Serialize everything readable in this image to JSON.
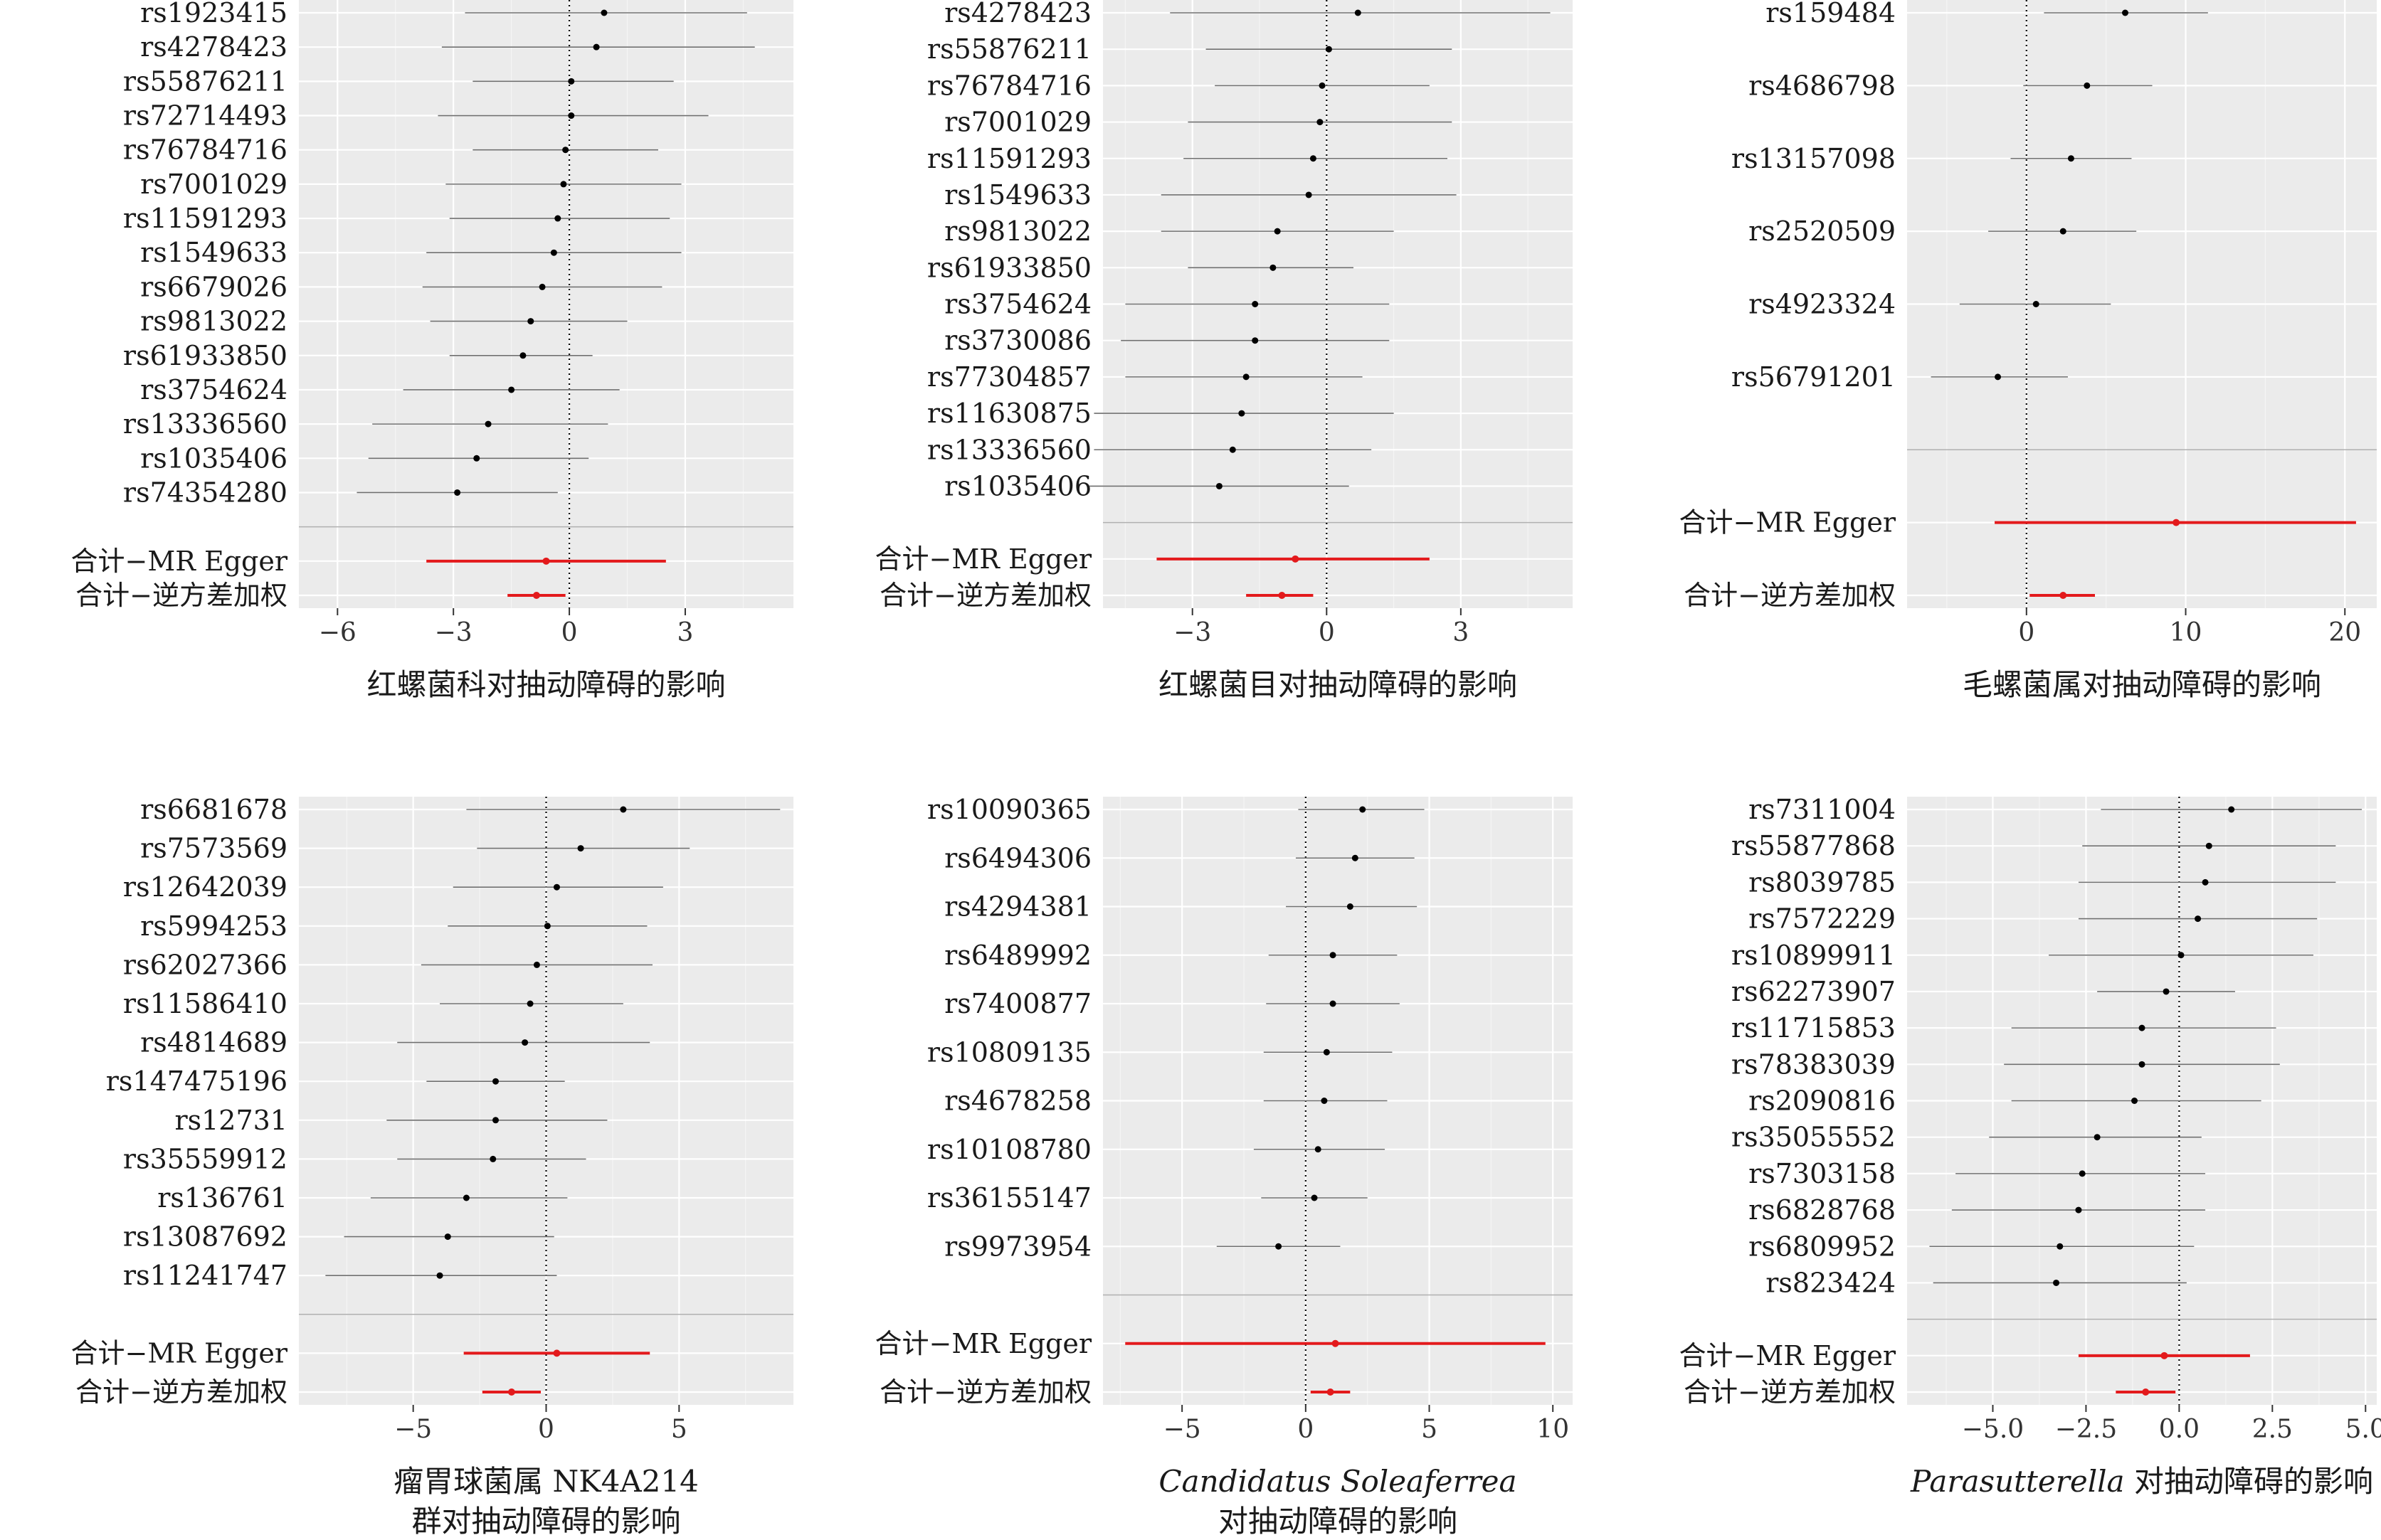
{
  "chart_data": [
    {
      "type": "forest",
      "xlabel_lines": [
        [
          {
            "text": "红螺菌科对抽动障碍的影响",
            "italic": false
          }
        ]
      ],
      "x_ticks": [
        -6,
        -3,
        0,
        3
      ],
      "xlim": [
        -7.0,
        5.8
      ],
      "zero_line": true,
      "snps": [
        {
          "name": "rs1923415",
          "estimate": 0.9,
          "lower": -2.7,
          "upper": 4.6
        },
        {
          "name": "rs4278423",
          "estimate": 0.7,
          "lower": -3.3,
          "upper": 4.8
        },
        {
          "name": "rs55876211",
          "estimate": 0.05,
          "lower": -2.5,
          "upper": 2.7
        },
        {
          "name": "rs72714493",
          "estimate": 0.05,
          "lower": -3.4,
          "upper": 3.6
        },
        {
          "name": "rs76784716",
          "estimate": -0.1,
          "lower": -2.5,
          "upper": 2.3
        },
        {
          "name": "rs7001029",
          "estimate": -0.15,
          "lower": -3.2,
          "upper": 2.9
        },
        {
          "name": "rs11591293",
          "estimate": -0.3,
          "lower": -3.1,
          "upper": 2.6
        },
        {
          "name": "rs1549633",
          "estimate": -0.4,
          "lower": -3.7,
          "upper": 2.9
        },
        {
          "name": "rs6679026",
          "estimate": -0.7,
          "lower": -3.8,
          "upper": 2.4
        },
        {
          "name": "rs9813022",
          "estimate": -1.0,
          "lower": -3.6,
          "upper": 1.5
        },
        {
          "name": "rs61933850",
          "estimate": -1.2,
          "lower": -3.1,
          "upper": 0.6
        },
        {
          "name": "rs3754624",
          "estimate": -1.5,
          "lower": -4.3,
          "upper": 1.3
        },
        {
          "name": "rs13336560",
          "estimate": -2.1,
          "lower": -5.1,
          "upper": 1.0
        },
        {
          "name": "rs1035406",
          "estimate": -2.4,
          "lower": -5.2,
          "upper": 0.5
        },
        {
          "name": "rs74354280",
          "estimate": -2.9,
          "lower": -5.5,
          "upper": -0.3
        }
      ],
      "summaries": [
        {
          "name": "合计−MR Egger",
          "estimate": -0.6,
          "lower": -3.7,
          "upper": 2.5
        },
        {
          "name": "合计−逆方差加权",
          "estimate": -0.85,
          "lower": -1.6,
          "upper": -0.1
        }
      ]
    },
    {
      "type": "forest",
      "xlabel_lines": [
        [
          {
            "text": "红螺菌目对抽动障碍的影响",
            "italic": false
          }
        ]
      ],
      "x_ticks": [
        -3,
        0,
        3
      ],
      "xlim": [
        -5.0,
        5.5
      ],
      "zero_line": true,
      "snps": [
        {
          "name": "rs4278423",
          "estimate": 0.7,
          "lower": -3.5,
          "upper": 5.0
        },
        {
          "name": "rs55876211",
          "estimate": 0.05,
          "lower": -2.7,
          "upper": 2.8
        },
        {
          "name": "rs76784716",
          "estimate": -0.1,
          "lower": -2.5,
          "upper": 2.3
        },
        {
          "name": "rs7001029",
          "estimate": -0.15,
          "lower": -3.1,
          "upper": 2.8
        },
        {
          "name": "rs11591293",
          "estimate": -0.3,
          "lower": -3.2,
          "upper": 2.7
        },
        {
          "name": "rs1549633",
          "estimate": -0.4,
          "lower": -3.7,
          "upper": 2.9
        },
        {
          "name": "rs9813022",
          "estimate": -1.1,
          "lower": -3.7,
          "upper": 1.5
        },
        {
          "name": "rs61933850",
          "estimate": -1.2,
          "lower": -3.1,
          "upper": 0.6
        },
        {
          "name": "rs3754624",
          "estimate": -1.6,
          "lower": -4.5,
          "upper": 1.4
        },
        {
          "name": "rs3730086",
          "estimate": -1.6,
          "lower": -4.6,
          "upper": 1.4
        },
        {
          "name": "rs77304857",
          "estimate": -1.8,
          "lower": -4.5,
          "upper": 0.8
        },
        {
          "name": "rs11630875",
          "estimate": -1.9,
          "lower": -5.2,
          "upper": 1.5
        },
        {
          "name": "rs13336560",
          "estimate": -2.1,
          "lower": -5.2,
          "upper": 1.0
        },
        {
          "name": "rs1035406",
          "estimate": -2.4,
          "lower": -5.3,
          "upper": 0.5
        }
      ],
      "summaries": [
        {
          "name": "合计−MR Egger",
          "estimate": -0.7,
          "lower": -3.8,
          "upper": 2.3
        },
        {
          "name": "合计−逆方差加权",
          "estimate": -1.0,
          "lower": -1.8,
          "upper": -0.3
        }
      ]
    },
    {
      "type": "forest",
      "xlabel_lines": [
        [
          {
            "text": "毛螺菌属对抽动障碍的影响",
            "italic": false
          }
        ]
      ],
      "x_ticks": [
        0,
        10,
        20
      ],
      "xlim": [
        -7.5,
        22.0
      ],
      "zero_line": true,
      "snps": [
        {
          "name": "rs159484",
          "estimate": 6.2,
          "lower": 1.1,
          "upper": 11.4
        },
        {
          "name": "rs4686798",
          "estimate": 3.8,
          "lower": -0.2,
          "upper": 7.9
        },
        {
          "name": "rs13157098",
          "estimate": 2.8,
          "lower": -1.0,
          "upper": 6.6
        },
        {
          "name": "rs2520509",
          "estimate": 2.3,
          "lower": -2.4,
          "upper": 6.9
        },
        {
          "name": "rs4923324",
          "estimate": 0.6,
          "lower": -4.2,
          "upper": 5.3
        },
        {
          "name": "rs56791201",
          "estimate": -1.8,
          "lower": -6.0,
          "upper": 2.6
        }
      ],
      "summaries": [
        {
          "name": "合计−MR Egger",
          "estimate": 9.4,
          "lower": -2.0,
          "upper": 20.7
        },
        {
          "name": "合计−逆方差加权",
          "estimate": 2.3,
          "lower": 0.2,
          "upper": 4.3
        }
      ]
    },
    {
      "type": "forest",
      "xlabel_lines": [
        [
          {
            "text": "瘤胃球菌属 NK4A214",
            "italic": false
          }
        ],
        [
          {
            "text": "群对抽动障碍的影响",
            "italic": false
          }
        ]
      ],
      "x_ticks": [
        -5,
        0,
        5
      ],
      "xlim": [
        -9.3,
        9.3
      ],
      "zero_line": true,
      "snps": [
        {
          "name": "rs6681678",
          "estimate": 2.9,
          "lower": -3.0,
          "upper": 8.8
        },
        {
          "name": "rs7573569",
          "estimate": 1.3,
          "lower": -2.6,
          "upper": 5.4
        },
        {
          "name": "rs12642039",
          "estimate": 0.4,
          "lower": -3.5,
          "upper": 4.4
        },
        {
          "name": "rs5994253",
          "estimate": 0.05,
          "lower": -3.7,
          "upper": 3.8
        },
        {
          "name": "rs62027366",
          "estimate": -0.35,
          "lower": -4.7,
          "upper": 4.0
        },
        {
          "name": "rs11586410",
          "estimate": -0.6,
          "lower": -4.0,
          "upper": 2.9
        },
        {
          "name": "rs4814689",
          "estimate": -0.8,
          "lower": -5.6,
          "upper": 3.9
        },
        {
          "name": "rs147475196",
          "estimate": -1.9,
          "lower": -4.5,
          "upper": 0.7
        },
        {
          "name": "rs12731",
          "estimate": -1.9,
          "lower": -6.0,
          "upper": 2.3
        },
        {
          "name": "rs35559912",
          "estimate": -2.0,
          "lower": -5.6,
          "upper": 1.5
        },
        {
          "name": "rs136761",
          "estimate": -3.0,
          "lower": -6.6,
          "upper": 0.8
        },
        {
          "name": "rs13087692",
          "estimate": -3.7,
          "lower": -7.6,
          "upper": 0.3
        },
        {
          "name": "rs11241747",
          "estimate": -4.0,
          "lower": -8.3,
          "upper": 0.4
        }
      ],
      "summaries": [
        {
          "name": "合计−MR Egger",
          "estimate": 0.4,
          "lower": -3.1,
          "upper": 3.9
        },
        {
          "name": "合计−逆方差加权",
          "estimate": -1.3,
          "lower": -2.4,
          "upper": -0.2
        }
      ]
    },
    {
      "type": "forest",
      "xlabel_lines": [
        [
          {
            "text": "Candidatus Soleaferrea",
            "italic": true
          }
        ],
        [
          {
            "text": "对抽动障碍的影响",
            "italic": false
          }
        ]
      ],
      "x_ticks": [
        -5,
        0,
        5,
        10
      ],
      "xlim": [
        -8.2,
        10.8
      ],
      "zero_line": true,
      "snps": [
        {
          "name": "rs10090365",
          "estimate": 2.3,
          "lower": -0.3,
          "upper": 4.8
        },
        {
          "name": "rs6494306",
          "estimate": 2.0,
          "lower": -0.4,
          "upper": 4.4
        },
        {
          "name": "rs4294381",
          "estimate": 1.8,
          "lower": -0.8,
          "upper": 4.5
        },
        {
          "name": "rs6489992",
          "estimate": 1.1,
          "lower": -1.5,
          "upper": 3.7
        },
        {
          "name": "rs7400877",
          "estimate": 1.1,
          "lower": -1.6,
          "upper": 3.8
        },
        {
          "name": "rs10809135",
          "estimate": 0.85,
          "lower": -1.7,
          "upper": 3.5
        },
        {
          "name": "rs4678258",
          "estimate": 0.75,
          "lower": -1.7,
          "upper": 3.3
        },
        {
          "name": "rs10108780",
          "estimate": 0.5,
          "lower": -2.1,
          "upper": 3.2
        },
        {
          "name": "rs36155147",
          "estimate": 0.35,
          "lower": -1.8,
          "upper": 2.5
        },
        {
          "name": "rs9973954",
          "estimate": -1.1,
          "lower": -3.6,
          "upper": 1.4
        }
      ],
      "summaries": [
        {
          "name": "合计−MR Egger",
          "estimate": 1.2,
          "lower": -7.3,
          "upper": 9.7
        },
        {
          "name": "合计−逆方差加权",
          "estimate": 1.0,
          "lower": 0.2,
          "upper": 1.8
        }
      ]
    },
    {
      "type": "forest",
      "xlabel_lines": [
        [
          {
            "text": "Parasutterella",
            "italic": true
          },
          {
            "text": " 对抽动障碍的影响",
            "italic": false
          }
        ]
      ],
      "x_ticks": [
        -5.0,
        -2.5,
        0.0,
        2.5,
        5.0
      ],
      "xlim": [
        -7.3,
        5.3
      ],
      "zero_line": true,
      "snps": [
        {
          "name": "rs7311004",
          "estimate": 1.4,
          "lower": -2.1,
          "upper": 4.9
        },
        {
          "name": "rs55877868",
          "estimate": 0.8,
          "lower": -2.6,
          "upper": 4.2
        },
        {
          "name": "rs8039785",
          "estimate": 0.7,
          "lower": -2.7,
          "upper": 4.2
        },
        {
          "name": "rs7572229",
          "estimate": 0.5,
          "lower": -2.7,
          "upper": 3.7
        },
        {
          "name": "rs10899911",
          "estimate": 0.05,
          "lower": -3.5,
          "upper": 3.6
        },
        {
          "name": "rs62273907",
          "estimate": -0.35,
          "lower": -2.2,
          "upper": 1.5
        },
        {
          "name": "rs11715853",
          "estimate": -1.0,
          "lower": -4.5,
          "upper": 2.6
        },
        {
          "name": "rs78383039",
          "estimate": -1.0,
          "lower": -4.7,
          "upper": 2.7
        },
        {
          "name": "rs2090816",
          "estimate": -1.2,
          "lower": -4.5,
          "upper": 2.2
        },
        {
          "name": "rs35055552",
          "estimate": -2.2,
          "lower": -5.1,
          "upper": 0.6
        },
        {
          "name": "rs7303158",
          "estimate": -2.6,
          "lower": -6.0,
          "upper": 0.7
        },
        {
          "name": "rs6828768",
          "estimate": -2.7,
          "lower": -6.1,
          "upper": 0.7
        },
        {
          "name": "rs6809952",
          "estimate": -3.2,
          "lower": -6.7,
          "upper": 0.4
        },
        {
          "name": "rs823424",
          "estimate": -3.3,
          "lower": -6.6,
          "upper": 0.2
        }
      ],
      "summaries": [
        {
          "name": "合计−MR Egger",
          "estimate": -0.4,
          "lower": -2.7,
          "upper": 1.9
        },
        {
          "name": "合计−逆方差加权",
          "estimate": -0.9,
          "lower": -1.7,
          "upper": -0.1
        }
      ]
    }
  ]
}
